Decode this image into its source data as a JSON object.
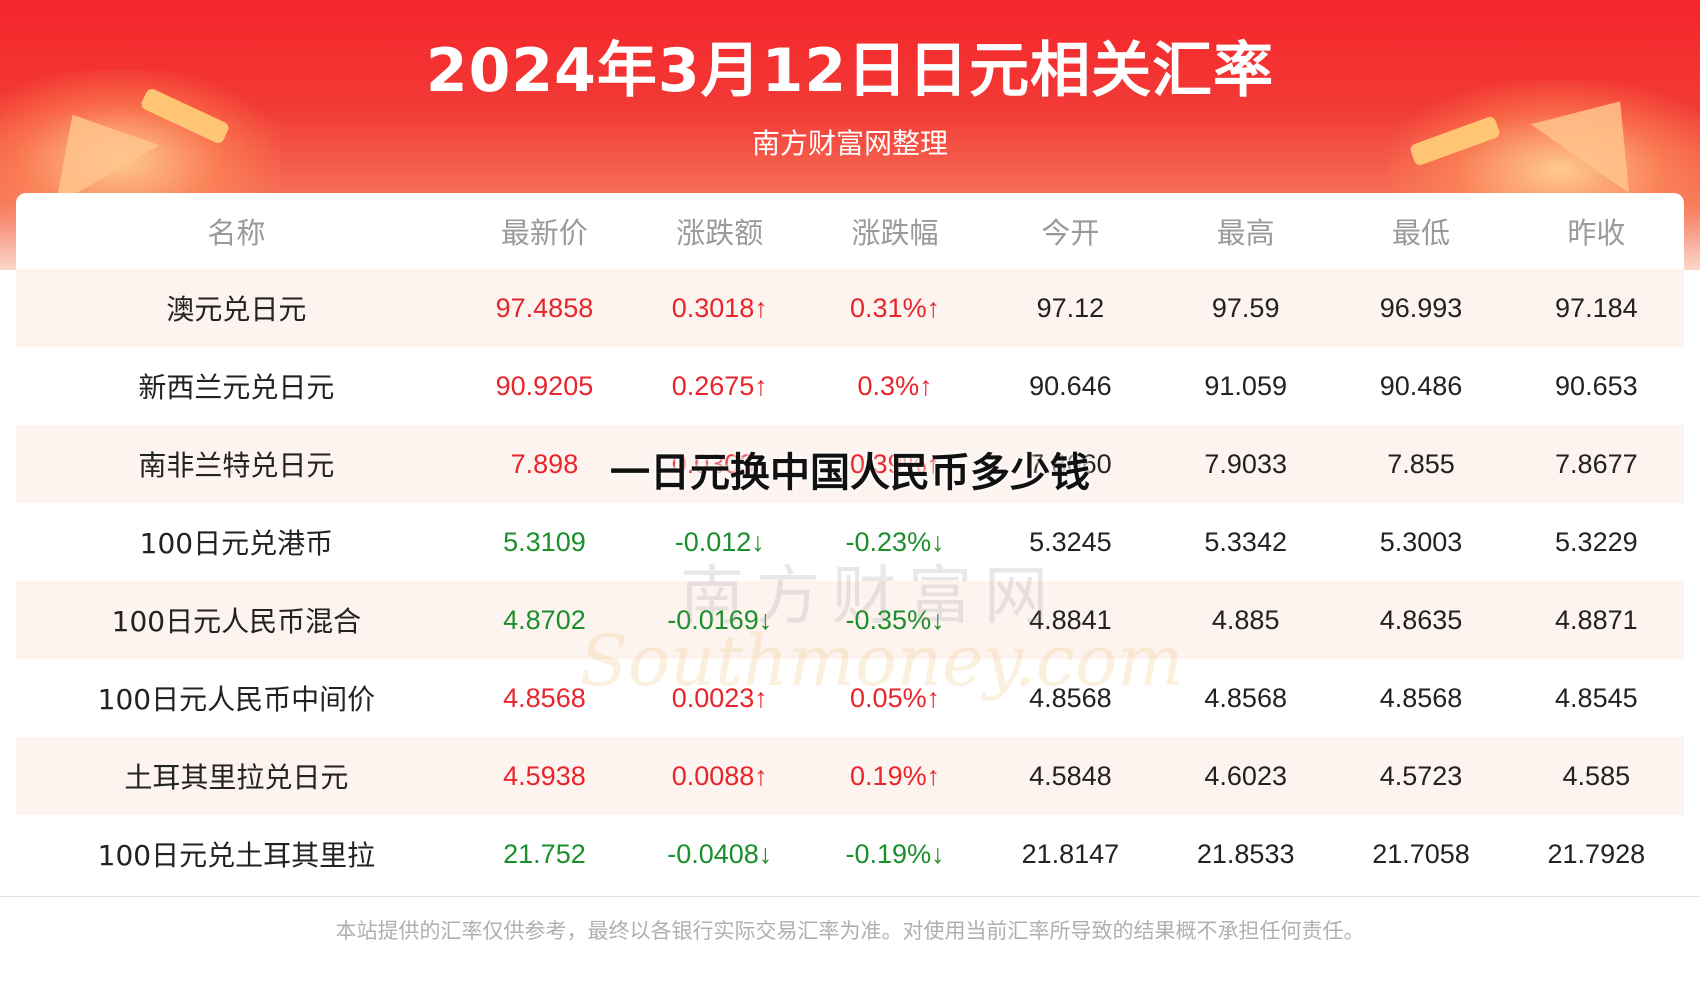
{
  "header": {
    "title": "2024年3月12日日元相关汇率",
    "subtitle": "南方财富网整理"
  },
  "table": {
    "columns": [
      "名称",
      "最新价",
      "涨跌额",
      "涨跌幅",
      "今开",
      "最高",
      "最低",
      "昨收"
    ],
    "rows": [
      {
        "name": "澳元兑日元",
        "latest": "97.4858",
        "change": "0.3018↑",
        "pct": "0.31%↑",
        "open": "97.12",
        "high": "97.59",
        "low": "96.993",
        "prev": "97.184",
        "trend": "up"
      },
      {
        "name": "新西兰元兑日元",
        "latest": "90.9205",
        "change": "0.2675↑",
        "pct": "0.3%↑",
        "open": "90.646",
        "high": "91.059",
        "low": "90.486",
        "prev": "90.653",
        "trend": "up"
      },
      {
        "name": "南非兰特兑日元",
        "latest": "7.898",
        "change": "0.0303↑",
        "pct": "0.39%↑",
        "open": "7.8660",
        "high": "7.9033",
        "low": "7.855",
        "prev": "7.8677",
        "trend": "up"
      },
      {
        "name": "100日元兑港币",
        "latest": "5.3109",
        "change": "-0.012↓",
        "pct": "-0.23%↓",
        "open": "5.3245",
        "high": "5.3342",
        "low": "5.3003",
        "prev": "5.3229",
        "trend": "down"
      },
      {
        "name": "100日元人民币混合",
        "latest": "4.8702",
        "change": "-0.0169↓",
        "pct": "-0.35%↓",
        "open": "4.8841",
        "high": "4.885",
        "low": "4.8635",
        "prev": "4.8871",
        "trend": "down"
      },
      {
        "name": "100日元人民币中间价",
        "latest": "4.8568",
        "change": "0.0023↑",
        "pct": "0.05%↑",
        "open": "4.8568",
        "high": "4.8568",
        "low": "4.8568",
        "prev": "4.8545",
        "trend": "up"
      },
      {
        "name": "土耳其里拉兑日元",
        "latest": "4.5938",
        "change": "0.0088↑",
        "pct": "0.19%↑",
        "open": "4.5848",
        "high": "4.6023",
        "low": "4.5723",
        "prev": "4.585",
        "trend": "up"
      },
      {
        "name": "100日元兑土耳其里拉",
        "latest": "21.752",
        "change": "-0.0408↓",
        "pct": "-0.19%↓",
        "open": "21.8147",
        "high": "21.8533",
        "low": "21.7058",
        "prev": "21.7928",
        "trend": "down"
      }
    ]
  },
  "overlay": {
    "text": "一日元换中国人民币多少钱"
  },
  "watermark": {
    "cn": "南方财富网",
    "en": "Southmoney.com"
  },
  "footer": {
    "disclaimer": "本站提供的汇率仅供参考，最终以各银行实际交易汇率为准。对使用当前汇率所导致的结果概不承担任何责任。"
  },
  "colors": {
    "up": "#e8252b",
    "down": "#1a8f2a",
    "banner": "#f5252b"
  }
}
